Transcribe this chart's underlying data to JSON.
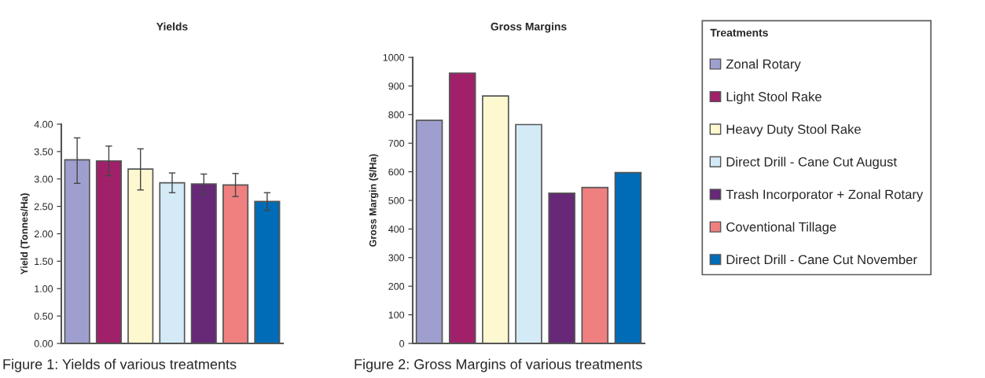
{
  "chart_data": [
    {
      "type": "bar",
      "title": "Yields",
      "ylabel": "Yield (Tonnes/Ha)",
      "stacked": true,
      "legend": false,
      "grid": false,
      "categories": [
        null,
        null,
        null,
        null,
        null,
        null,
        null
      ],
      "series": [
        {
          "color": "#9f9fcf",
          "values": [
            3.35,
            null,
            null,
            null,
            null,
            null,
            null
          ],
          "errors": [
            [
              2.92,
              3.75
            ],
            null,
            null,
            null,
            null,
            null,
            null
          ]
        },
        {
          "color": "#a0216a",
          "values": [
            null,
            3.33,
            null,
            null,
            null,
            null,
            null
          ],
          "errors": [
            null,
            [
              3.06,
              3.6
            ],
            null,
            null,
            null,
            null,
            null
          ]
        },
        {
          "color": "#fdf8d0",
          "values": [
            null,
            null,
            3.18,
            null,
            null,
            null,
            null
          ],
          "errors": [
            null,
            null,
            [
              2.8,
              3.55
            ],
            null,
            null,
            null,
            null
          ]
        },
        {
          "color": "#d4ebf7",
          "values": [
            null,
            null,
            null,
            2.93,
            null,
            null,
            null
          ],
          "errors": [
            null,
            null,
            null,
            [
              2.75,
              3.11
            ],
            null,
            null,
            null
          ]
        },
        {
          "color": "#662877",
          "values": [
            null,
            null,
            null,
            null,
            2.91,
            null,
            null
          ],
          "errors": [
            null,
            null,
            null,
            null,
            [
              2.72,
              3.09
            ],
            null,
            null
          ]
        },
        {
          "color": "#f08080",
          "values": [
            null,
            null,
            null,
            null,
            null,
            2.89,
            null
          ],
          "errors": [
            null,
            null,
            null,
            null,
            null,
            [
              2.68,
              3.1
            ],
            null
          ]
        },
        {
          "color": "#006cb7",
          "values": [
            null,
            null,
            null,
            null,
            null,
            null,
            2.59
          ],
          "errors": [
            null,
            null,
            null,
            null,
            null,
            null,
            [
              2.43,
              2.75
            ]
          ]
        }
      ],
      "ylim": [
        0,
        4
      ],
      "yticks": [
        {
          "value": 0,
          "label": "0.00"
        },
        {
          "value": 0.5,
          "label": "0.50"
        },
        {
          "value": 1,
          "label": "1.00"
        },
        {
          "value": 1.5,
          "label": "1.50"
        },
        {
          "value": 2,
          "label": "2.00"
        },
        {
          "value": 2.5,
          "label": "2.50"
        },
        {
          "value": 3,
          "label": "3.00"
        },
        {
          "value": 3.5,
          "label": "3.50"
        },
        {
          "value": 4,
          "label": "4.00"
        }
      ],
      "annotations": [
        "Figure 1: Yields of various treatments"
      ]
    },
    {
      "type": "bar",
      "title": "Gross Margins",
      "ylabel": "Gross Margin ($/Ha)",
      "stacked": true,
      "legend": "right",
      "legend_title": "Treatments",
      "grid": false,
      "categories": [
        null,
        null,
        null,
        null,
        null,
        null,
        null
      ],
      "series": [
        {
          "name": "Zonal Rotary",
          "color": "#9f9fcf",
          "values": [
            780,
            null,
            null,
            null,
            null,
            null,
            null
          ]
        },
        {
          "name": "Light Stool Rake",
          "color": "#a0216a",
          "values": [
            null,
            945,
            null,
            null,
            null,
            null,
            null
          ]
        },
        {
          "name": "Heavy Duty Stool Rake",
          "color": "#fdf8d0",
          "values": [
            null,
            null,
            865,
            null,
            null,
            null,
            null
          ]
        },
        {
          "name": "Direct Drill - Cane Cut August",
          "color": "#d4ebf7",
          "values": [
            null,
            null,
            null,
            765,
            null,
            null,
            null
          ]
        },
        {
          "name": "Trash Incorporator + Zonal Rotary",
          "color": "#662877",
          "values": [
            null,
            null,
            null,
            null,
            525,
            null,
            null
          ]
        },
        {
          "name": "Coventional Tillage",
          "color": "#f08080",
          "values": [
            null,
            null,
            null,
            null,
            null,
            545,
            null
          ]
        },
        {
          "name": "Direct Drill - Cane Cut November",
          "color": "#006cb7",
          "values": [
            null,
            null,
            null,
            null,
            null,
            null,
            597
          ]
        }
      ],
      "ylim": [
        0,
        1000
      ],
      "yticks": [
        0,
        100,
        200,
        300,
        400,
        500,
        600,
        700,
        800,
        900,
        1000
      ],
      "annotations": [
        "Figure 2: Gross Margins of various treatments"
      ]
    }
  ]
}
